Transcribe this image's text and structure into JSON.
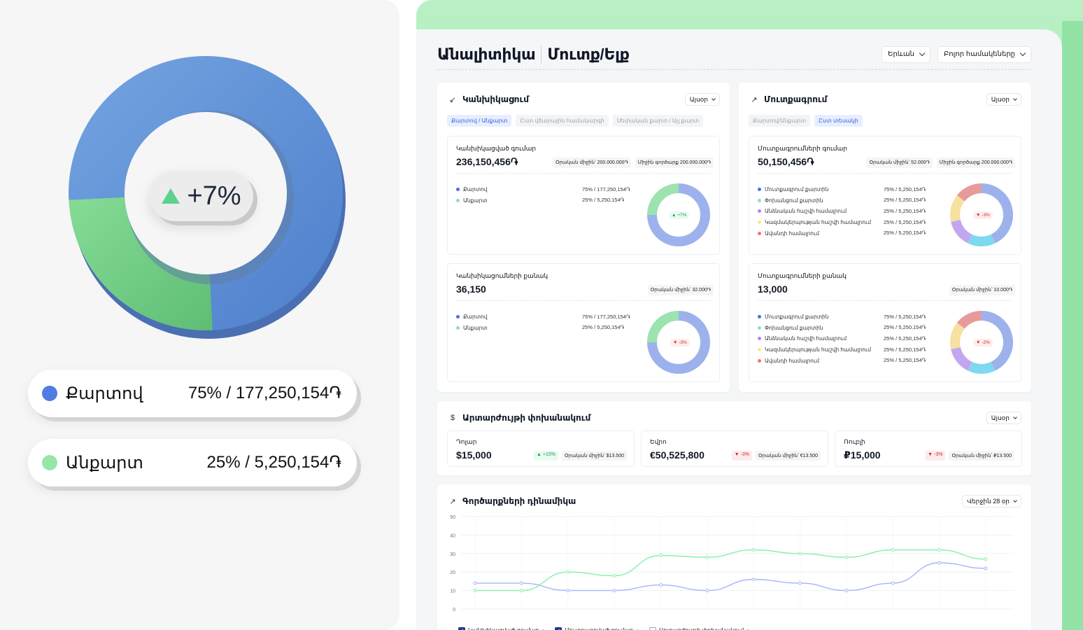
{
  "hero": {
    "change": "+7%",
    "donut": [
      {
        "name": "Քարտով",
        "fraction": 0.75,
        "color": "#5b8fd8"
      },
      {
        "name": "Անքարտ",
        "fraction": 0.25,
        "color": "#72cc86"
      }
    ],
    "legend": [
      {
        "name": "Քարտով",
        "value": "75% / 177,250,154֏",
        "color": "#4f7ce0"
      },
      {
        "name": "Անքարտ",
        "value": "25% / 5,250,154֏",
        "color": "#97e6a8"
      }
    ]
  },
  "header": {
    "title": "Անալիտիկա",
    "subtitle": "Մուտք/Ելք",
    "city_select": "Երևան",
    "vendors_select": "Բոլոր համակեները"
  },
  "cash": {
    "title": "Կանխիկացում",
    "period": "Այսօր",
    "tabs": [
      "Քարտով / Անքարտ",
      "Ըստ վճարային համակարգի",
      "Սեփական քարտ / Այլ քարտ"
    ],
    "amount": {
      "label": "Կանխիկացված գումար",
      "value": "236,150,456֏",
      "metas": [
        "Օրական միջին՝ 200.000.000֏",
        "Միջին գործարք 200.000.000֏"
      ],
      "rows": [
        {
          "name": "Քարտով",
          "value": "75% / 177,250,154֏",
          "color": "#4f6fd6"
        },
        {
          "name": "Անքարտ",
          "value": "25% / 5,250,154֏",
          "color": "#8fe3a5"
        }
      ],
      "badge": "+7%"
    },
    "count": {
      "label": "Կանխիկացումների քանակ",
      "value": "36,150",
      "metas": [
        "Օրական միջին՝ 32.000֏"
      ],
      "rows": [
        {
          "name": "Քարտով",
          "value": "75% / 177,250,154֏",
          "color": "#4f6fd6"
        },
        {
          "name": "Անքարտ",
          "value": "25% / 5,250,154֏",
          "color": "#8fe3a5"
        }
      ],
      "badge": "-3%"
    }
  },
  "deposit": {
    "title": "Մուտքագրում",
    "period": "Այսօր",
    "tabs": [
      "Քարտով/Անքարտ",
      "Ըստ տեսակի"
    ],
    "amount": {
      "label": "Մուտքագրումների գումար",
      "value": "50,150,456֏",
      "metas": [
        "Օրական միջին՝ 52.000֏",
        "Միջին գործարք 200.000.000֏"
      ],
      "rows": [
        {
          "name": "Մուտքագրում քարտին",
          "value": "75% / 5,250,154֏",
          "color": "#4f6fd6"
        },
        {
          "name": "Փոխանցում քարտին",
          "value": "25% / 5,250,154֏",
          "color": "#8fe3a5"
        },
        {
          "name": "Անձնական հաշվի համալրում",
          "value": "25% / 5,250,154֏",
          "color": "#a78bfa"
        },
        {
          "name": "Կազմակերպության հաշվի համալրում",
          "value": "25% / 5,250,154֏",
          "color": "#fde68a"
        },
        {
          "name": "Ավանդի համալրում",
          "value": "25% / 5,250,154֏",
          "color": "#f87171"
        }
      ],
      "badge": "-3%"
    },
    "count": {
      "label": "Մուտքագրումների քանակ",
      "value": "13,000",
      "metas": [
        "Օրական միջին՝ 10.000֏"
      ],
      "rows": [
        {
          "name": "Մուտքագրում քարտին",
          "value": "75% / 5,250,154֏",
          "color": "#4f6fd6"
        },
        {
          "name": "Փոխանցում քարտին",
          "value": "25% / 5,250,154֏",
          "color": "#8fe3a5"
        },
        {
          "name": "Անձնական հաշվի համալրում",
          "value": "25% / 5,250,154֏",
          "color": "#a78bfa"
        },
        {
          "name": "Կազմակերպության հաշվի համալրում",
          "value": "25% / 5,250,154֏",
          "color": "#fde68a"
        },
        {
          "name": "Ավանդի համալրում",
          "value": "25% / 5,250,154֏",
          "color": "#f87171"
        }
      ],
      "badge": "-2%"
    }
  },
  "currency": {
    "title": "Արտարժույթի փոխանակում",
    "period": "Այսօր",
    "items": [
      {
        "label": "Դոլար",
        "value": "$15,000",
        "change": "+15%",
        "dir": "up",
        "avg": "Օրական միջին՝ $13.500"
      },
      {
        "label": "Եվրո",
        "value": "€50,525,800",
        "change": "-3%",
        "dir": "dn",
        "avg": "Օրական միջին՝ €13.500"
      },
      {
        "label": "Ռուբլի",
        "value": "₽15,000",
        "change": "-3%",
        "dir": "dn",
        "avg": "Օրական միջին՝ ₽13.500"
      }
    ]
  },
  "dynamics": {
    "title": "Գործարքների դինամիկա",
    "period": "Վերջին 28 օր",
    "legend": [
      {
        "name": "Կանխիկացված գումար",
        "checked": true,
        "color": "#a5b4fc"
      },
      {
        "name": "Մուտքագրված գումար",
        "checked": true,
        "color": "#86efac"
      },
      {
        "name": "Արտարժույթի փոխանակում",
        "checked": false,
        "color": "#fca5a5"
      }
    ]
  },
  "chart_data": {
    "type": "line",
    "x": [
      1,
      2,
      3,
      4,
      5,
      6,
      7,
      8,
      9,
      10,
      11,
      12
    ],
    "ylim": [
      0,
      50
    ],
    "yticks": [
      "0",
      "10",
      "20",
      "30",
      "40",
      "50"
    ],
    "series": [
      {
        "name": "Կանխիկացված գումար",
        "color": "#a5b4fc",
        "values": [
          14,
          14,
          10,
          10,
          13,
          10,
          16,
          14,
          10,
          14,
          25,
          22
        ]
      },
      {
        "name": "Մուտքագրված գումար",
        "color": "#86efac",
        "values": [
          10,
          10,
          20,
          18,
          29,
          28,
          32,
          30,
          28,
          32,
          32,
          27
        ]
      }
    ]
  }
}
